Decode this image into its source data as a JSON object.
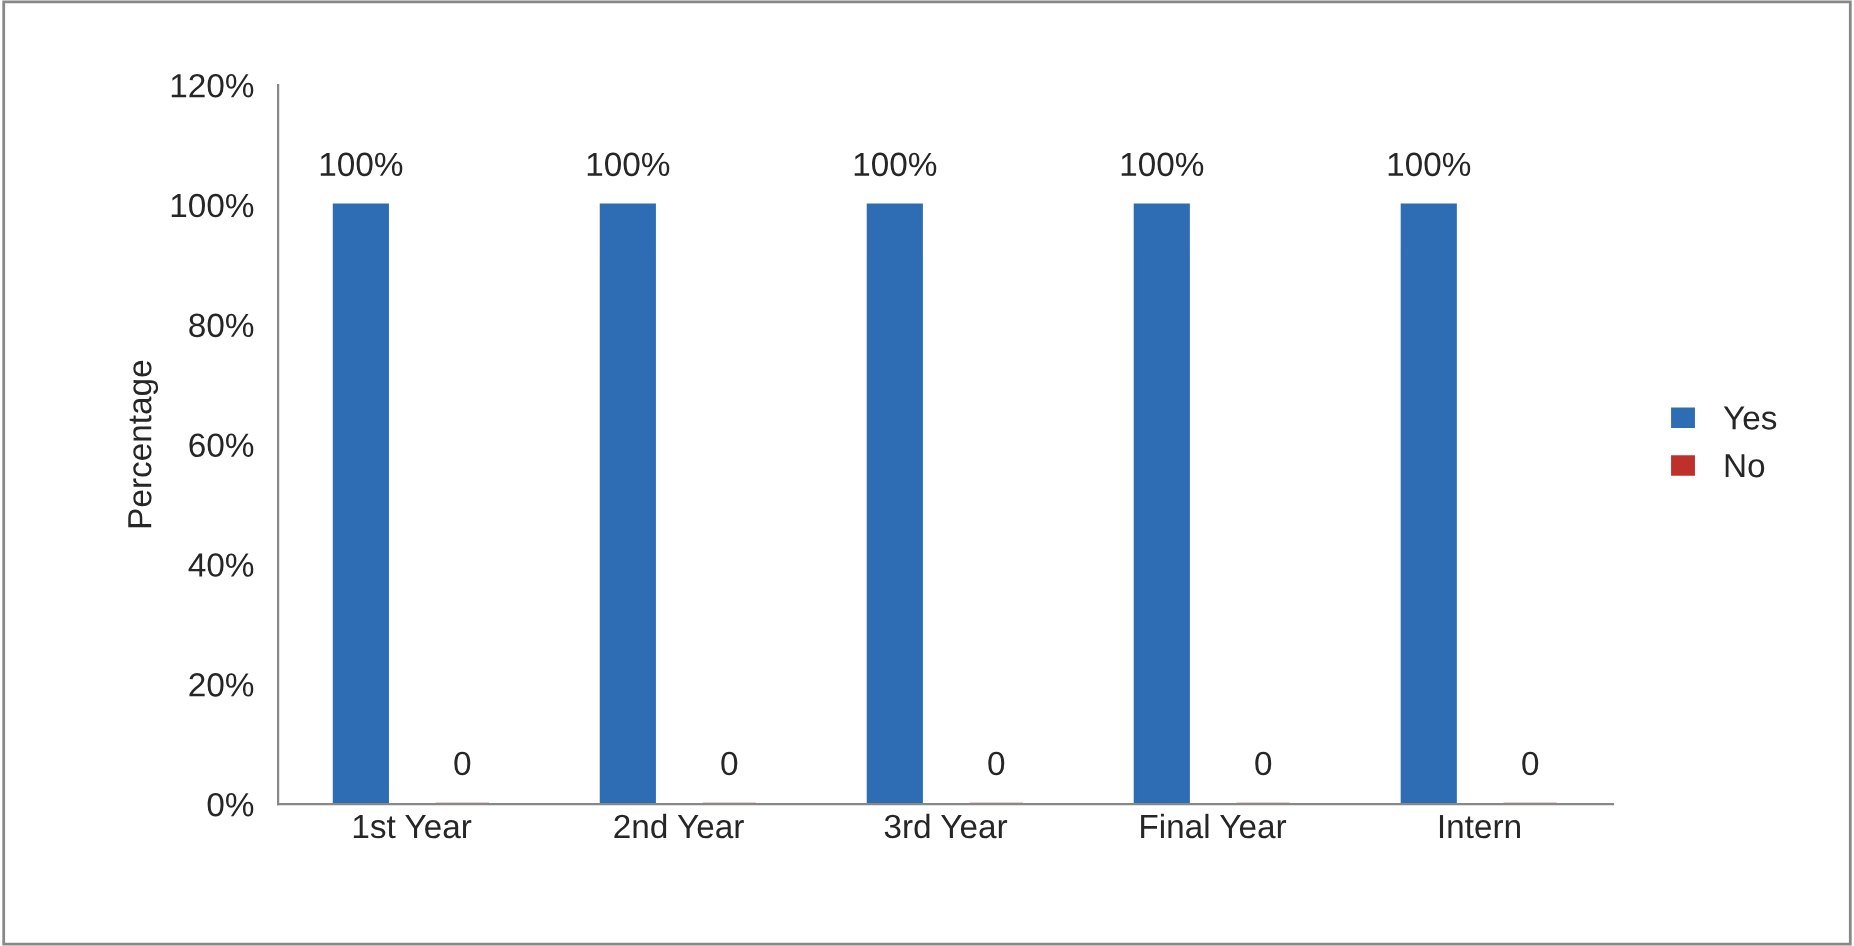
{
  "chart_data": {
    "type": "bar",
    "ylabel": "Percentage",
    "categories": [
      "1st Year",
      "2nd Year",
      "3rd Year",
      "Final Year",
      "Intern"
    ],
    "series": [
      {
        "name": "Yes",
        "color": "#2e6db4",
        "values": [
          100,
          100,
          100,
          100,
          100
        ],
        "value_labels": [
          "100%",
          "100%",
          "100%",
          "100%",
          "100%"
        ]
      },
      {
        "name": "No",
        "color": "#c0302a",
        "values": [
          0,
          0,
          0,
          0,
          0
        ],
        "value_labels": [
          "0",
          "0",
          "0",
          "0",
          "0"
        ]
      }
    ],
    "ylim": [
      0,
      120
    ],
    "yticks": [
      {
        "value": 0,
        "label": "0%"
      },
      {
        "value": 20,
        "label": "20%"
      },
      {
        "value": 40,
        "label": "40%"
      },
      {
        "value": 60,
        "label": "60%"
      },
      {
        "value": 80,
        "label": "80%"
      },
      {
        "value": 100,
        "label": "100%"
      },
      {
        "value": 120,
        "label": "120%"
      }
    ],
    "grid": false,
    "legend": "right"
  }
}
